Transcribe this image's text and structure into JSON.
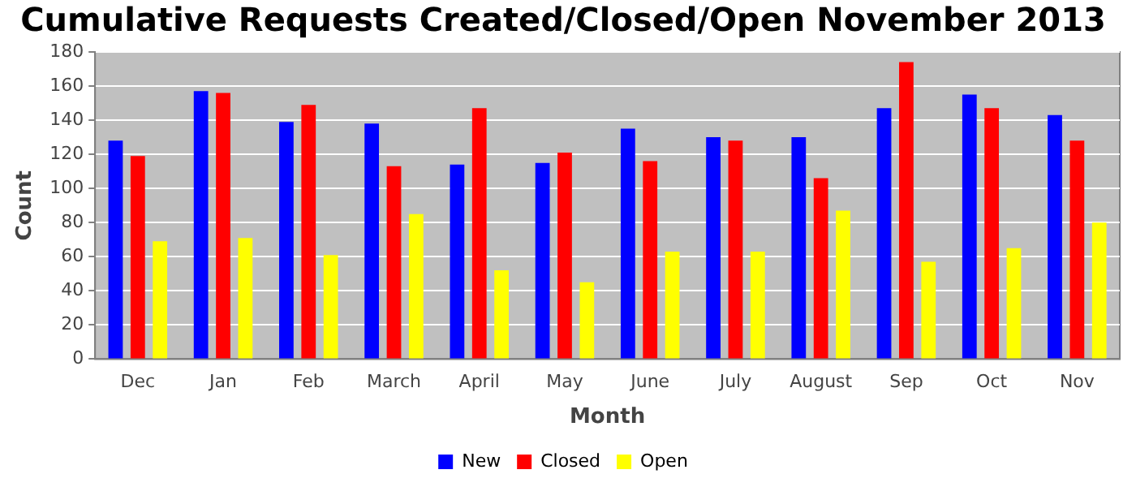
{
  "chart_data": {
    "type": "bar",
    "title": "Cumulative Requests Created/Closed/Open November 2013",
    "xlabel": "Month",
    "ylabel": "Count",
    "categories": [
      "Dec",
      "Jan",
      "Feb",
      "March",
      "April",
      "May",
      "June",
      "July",
      "August",
      "Sep",
      "Oct",
      "Nov"
    ],
    "series": [
      {
        "name": "New",
        "color": "#0000ff",
        "values": [
          128,
          157,
          139,
          138,
          114,
          115,
          135,
          130,
          130,
          147,
          155,
          143
        ]
      },
      {
        "name": "Closed",
        "color": "#ff0000",
        "values": [
          119,
          156,
          149,
          113,
          147,
          121,
          116,
          128,
          106,
          174,
          147,
          128
        ]
      },
      {
        "name": "Open",
        "color": "#ffff00",
        "values": [
          69,
          71,
          61,
          85,
          52,
          45,
          63,
          63,
          87,
          57,
          65,
          80
        ]
      }
    ],
    "ylim": [
      0,
      180
    ],
    "yticks": [
      0,
      20,
      40,
      60,
      80,
      100,
      120,
      140,
      160,
      180
    ],
    "grid": "y",
    "legend": "bottom"
  }
}
